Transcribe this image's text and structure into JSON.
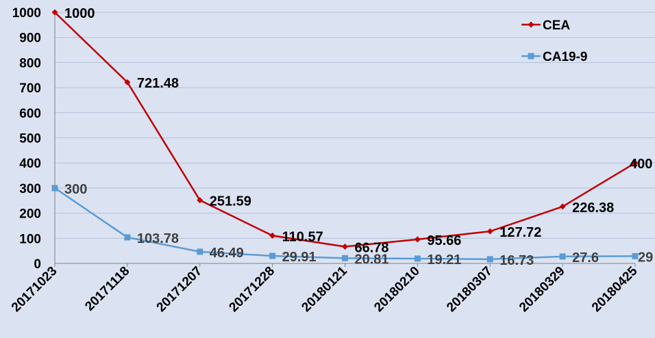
{
  "chart_data": {
    "type": "line",
    "title": "",
    "xlabel": "",
    "ylabel": "",
    "categories": [
      "20171023",
      "20171118",
      "20171207",
      "20171228",
      "20180121",
      "20180210",
      "20180307",
      "20180329",
      "20180425"
    ],
    "ylim": [
      0,
      1000
    ],
    "yticks": [
      0,
      100,
      200,
      300,
      400,
      500,
      600,
      700,
      800,
      900,
      1000
    ],
    "grid": true,
    "legend_position": "top-right",
    "series": [
      {
        "name": "CEA",
        "color": "#c00000",
        "marker": "diamond",
        "values": [
          1000,
          721.48,
          251.59,
          110.57,
          66.78,
          95.66,
          127.72,
          226.38,
          400
        ],
        "labels": [
          "1000",
          "721.48",
          "251.59",
          "110.57",
          "66.78",
          "95.66",
          "127.72",
          "226.38",
          "400"
        ],
        "label_color": "#000000"
      },
      {
        "name": "CA19-9",
        "color": "#5b9bd5",
        "marker": "square",
        "values": [
          300,
          103.78,
          46.49,
          29.91,
          20.81,
          19.21,
          16.73,
          27.6,
          29
        ],
        "labels": [
          "300",
          "103.78",
          "46.49",
          "29.91",
          "20.81",
          "19.21",
          "16.73",
          "27.6",
          "29"
        ],
        "label_color": "#404040"
      }
    ]
  }
}
